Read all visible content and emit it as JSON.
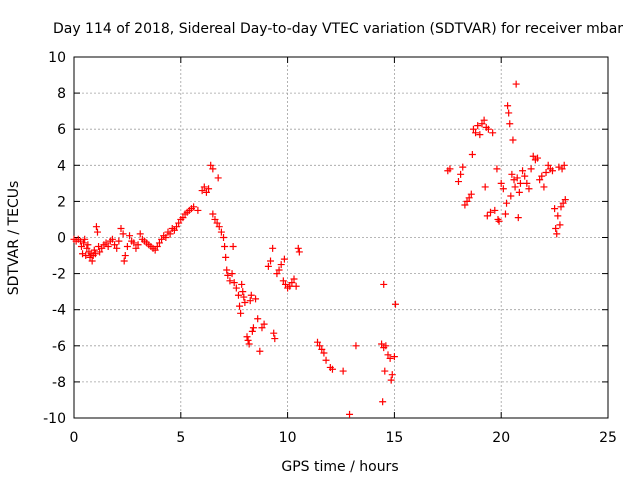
{
  "chart_data": {
    "type": "scatter",
    "title": "Day 114 of 2018, Sidereal Day-to-day VTEC variation (SDTVAR) for receiver mbar",
    "xlabel": "GPS time / hours",
    "ylabel": "SDTVAR / TECUs",
    "xlim": [
      0,
      25
    ],
    "ylim": [
      -10,
      10
    ],
    "xticks": [
      0,
      5,
      10,
      15,
      20,
      25
    ],
    "yticks": [
      -10,
      -8,
      -6,
      -4,
      -2,
      0,
      2,
      4,
      6,
      8,
      10
    ],
    "grid": true,
    "marker": "+",
    "color": "#ff0000",
    "series": [
      {
        "name": "mbar",
        "points": [
          [
            0.0,
            -0.1
          ],
          [
            0.1,
            -0.2
          ],
          [
            0.2,
            -0.1
          ],
          [
            0.3,
            -0.2
          ],
          [
            0.35,
            -0.5
          ],
          [
            0.4,
            -0.9
          ],
          [
            0.45,
            -0.3
          ],
          [
            0.5,
            -0.1
          ],
          [
            0.55,
            -1.0
          ],
          [
            0.6,
            -0.6
          ],
          [
            0.65,
            -0.4
          ],
          [
            0.7,
            -0.8
          ],
          [
            0.75,
            -1.1
          ],
          [
            0.8,
            -0.9
          ],
          [
            0.85,
            -1.3
          ],
          [
            0.9,
            -1.0
          ],
          [
            0.95,
            -0.7
          ],
          [
            1.0,
            -0.9
          ],
          [
            1.05,
            0.6
          ],
          [
            1.1,
            0.3
          ],
          [
            1.15,
            -0.5
          ],
          [
            1.2,
            -0.8
          ],
          [
            1.3,
            -0.6
          ],
          [
            1.4,
            -0.4
          ],
          [
            1.5,
            -0.3
          ],
          [
            1.6,
            -0.5
          ],
          [
            1.7,
            -0.2
          ],
          [
            1.8,
            -0.1
          ],
          [
            1.9,
            -0.4
          ],
          [
            2.0,
            -0.6
          ],
          [
            2.1,
            -0.2
          ],
          [
            2.2,
            0.5
          ],
          [
            2.3,
            0.2
          ],
          [
            2.35,
            -1.3
          ],
          [
            2.4,
            -1.0
          ],
          [
            2.5,
            -0.5
          ],
          [
            2.6,
            0.1
          ],
          [
            2.7,
            -0.2
          ],
          [
            2.8,
            -0.3
          ],
          [
            2.9,
            -0.6
          ],
          [
            3.0,
            -0.4
          ],
          [
            3.1,
            0.2
          ],
          [
            3.2,
            -0.1
          ],
          [
            3.3,
            -0.2
          ],
          [
            3.4,
            -0.3
          ],
          [
            3.5,
            -0.4
          ],
          [
            3.6,
            -0.5
          ],
          [
            3.7,
            -0.6
          ],
          [
            3.8,
            -0.7
          ],
          [
            3.9,
            -0.5
          ],
          [
            4.0,
            -0.3
          ],
          [
            4.1,
            -0.1
          ],
          [
            4.2,
            0.1
          ],
          [
            4.3,
            0.0
          ],
          [
            4.4,
            0.3
          ],
          [
            4.5,
            0.2
          ],
          [
            4.6,
            0.5
          ],
          [
            4.7,
            0.4
          ],
          [
            4.8,
            0.6
          ],
          [
            4.9,
            0.8
          ],
          [
            5.0,
            1.0
          ],
          [
            5.1,
            1.1
          ],
          [
            5.2,
            1.3
          ],
          [
            5.3,
            1.4
          ],
          [
            5.4,
            1.5
          ],
          [
            5.5,
            1.6
          ],
          [
            5.6,
            1.7
          ],
          [
            5.8,
            1.5
          ],
          [
            6.0,
            2.6
          ],
          [
            6.1,
            2.8
          ],
          [
            6.2,
            2.5
          ],
          [
            6.3,
            2.7
          ],
          [
            6.4,
            4.0
          ],
          [
            6.5,
            3.8
          ],
          [
            6.5,
            1.3
          ],
          [
            6.6,
            1.0
          ],
          [
            6.7,
            0.8
          ],
          [
            6.75,
            3.3
          ],
          [
            6.8,
            0.6
          ],
          [
            6.9,
            0.3
          ],
          [
            7.0,
            0.0
          ],
          [
            7.05,
            -0.5
          ],
          [
            7.1,
            -1.1
          ],
          [
            7.15,
            -1.8
          ],
          [
            7.2,
            -2.1
          ],
          [
            7.3,
            -2.4
          ],
          [
            7.4,
            -2.0
          ],
          [
            7.45,
            -0.5
          ],
          [
            7.5,
            -2.5
          ],
          [
            7.6,
            -2.8
          ],
          [
            7.7,
            -3.2
          ],
          [
            7.75,
            -3.8
          ],
          [
            7.8,
            -4.2
          ],
          [
            7.85,
            -2.6
          ],
          [
            7.9,
            -3.0
          ],
          [
            7.95,
            -3.3
          ],
          [
            8.0,
            -3.6
          ],
          [
            8.1,
            -5.5
          ],
          [
            8.15,
            -5.7
          ],
          [
            8.2,
            -5.9
          ],
          [
            8.25,
            -3.5
          ],
          [
            8.3,
            -3.2
          ],
          [
            8.35,
            -5.2
          ],
          [
            8.4,
            -5.0
          ],
          [
            8.5,
            -3.4
          ],
          [
            8.6,
            -4.5
          ],
          [
            8.7,
            -6.3
          ],
          [
            8.8,
            -5.0
          ],
          [
            8.9,
            -4.8
          ],
          [
            9.1,
            -1.6
          ],
          [
            9.2,
            -1.3
          ],
          [
            9.3,
            -0.6
          ],
          [
            9.35,
            -5.3
          ],
          [
            9.4,
            -5.6
          ],
          [
            9.5,
            -2.0
          ],
          [
            9.6,
            -1.8
          ],
          [
            9.7,
            -1.5
          ],
          [
            9.8,
            -2.4
          ],
          [
            9.85,
            -1.2
          ],
          [
            9.9,
            -2.6
          ],
          [
            10.0,
            -2.8
          ],
          [
            10.1,
            -2.7
          ],
          [
            10.2,
            -2.5
          ],
          [
            10.3,
            -2.3
          ],
          [
            10.4,
            -2.7
          ],
          [
            10.5,
            -0.6
          ],
          [
            10.55,
            -0.8
          ],
          [
            11.4,
            -5.8
          ],
          [
            11.5,
            -6.0
          ],
          [
            11.6,
            -6.2
          ],
          [
            11.7,
            -6.4
          ],
          [
            11.8,
            -6.8
          ],
          [
            12.0,
            -7.2
          ],
          [
            12.1,
            -7.3
          ],
          [
            12.6,
            -7.4
          ],
          [
            12.9,
            -9.8
          ],
          [
            13.2,
            -6.0
          ],
          [
            14.4,
            -5.9
          ],
          [
            14.45,
            -9.1
          ],
          [
            14.5,
            -2.6
          ],
          [
            14.5,
            -6.1
          ],
          [
            14.55,
            -7.4
          ],
          [
            14.6,
            -6.0
          ],
          [
            14.7,
            -6.5
          ],
          [
            14.8,
            -6.7
          ],
          [
            14.85,
            -7.9
          ],
          [
            14.9,
            -7.6
          ],
          [
            15.0,
            -6.6
          ],
          [
            15.05,
            -3.7
          ],
          [
            17.5,
            3.7
          ],
          [
            17.6,
            3.8
          ],
          [
            18.0,
            3.1
          ],
          [
            18.1,
            3.5
          ],
          [
            18.2,
            3.9
          ],
          [
            18.3,
            1.8
          ],
          [
            18.4,
            2.0
          ],
          [
            18.5,
            2.2
          ],
          [
            18.6,
            2.4
          ],
          [
            18.65,
            4.6
          ],
          [
            18.7,
            6.0
          ],
          [
            18.8,
            5.8
          ],
          [
            18.9,
            6.2
          ],
          [
            19.0,
            5.7
          ],
          [
            19.1,
            6.3
          ],
          [
            19.2,
            6.5
          ],
          [
            19.25,
            2.8
          ],
          [
            19.3,
            6.1
          ],
          [
            19.35,
            1.2
          ],
          [
            19.4,
            6.0
          ],
          [
            19.5,
            1.4
          ],
          [
            19.6,
            5.8
          ],
          [
            19.7,
            1.5
          ],
          [
            19.8,
            3.8
          ],
          [
            19.85,
            1.0
          ],
          [
            19.9,
            0.9
          ],
          [
            20.0,
            3.0
          ],
          [
            20.1,
            2.7
          ],
          [
            20.2,
            1.3
          ],
          [
            20.25,
            1.9
          ],
          [
            20.3,
            7.3
          ],
          [
            20.35,
            6.9
          ],
          [
            20.4,
            6.3
          ],
          [
            20.45,
            2.3
          ],
          [
            20.5,
            3.5
          ],
          [
            20.55,
            5.4
          ],
          [
            20.6,
            3.2
          ],
          [
            20.65,
            2.8
          ],
          [
            20.7,
            8.5
          ],
          [
            20.75,
            3.3
          ],
          [
            20.8,
            1.1
          ],
          [
            20.85,
            2.5
          ],
          [
            20.9,
            3.0
          ],
          [
            21.0,
            3.7
          ],
          [
            21.1,
            3.4
          ],
          [
            21.2,
            3.0
          ],
          [
            21.3,
            2.7
          ],
          [
            21.4,
            3.8
          ],
          [
            21.5,
            4.5
          ],
          [
            21.6,
            4.3
          ],
          [
            21.7,
            4.4
          ],
          [
            21.8,
            3.2
          ],
          [
            21.9,
            3.4
          ],
          [
            22.0,
            2.8
          ],
          [
            22.1,
            3.6
          ],
          [
            22.2,
            4.0
          ],
          [
            22.3,
            3.8
          ],
          [
            22.4,
            3.7
          ],
          [
            22.5,
            1.6
          ],
          [
            22.55,
            0.5
          ],
          [
            22.6,
            0.2
          ],
          [
            22.65,
            1.2
          ],
          [
            22.7,
            3.9
          ],
          [
            22.75,
            0.7
          ],
          [
            22.8,
            1.7
          ],
          [
            22.85,
            3.8
          ],
          [
            22.9,
            1.9
          ],
          [
            22.95,
            4.0
          ],
          [
            23.0,
            2.1
          ]
        ]
      }
    ]
  }
}
